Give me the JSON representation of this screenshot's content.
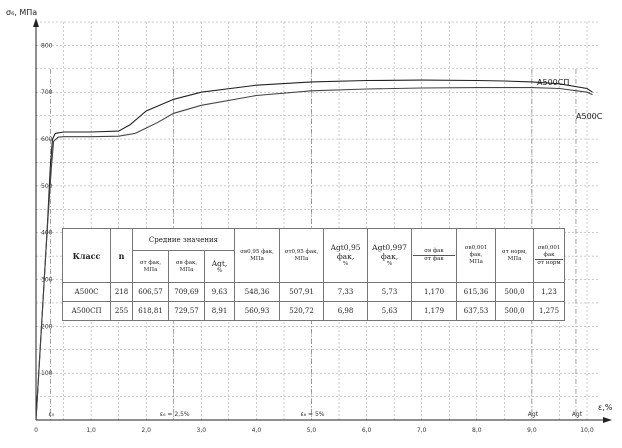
{
  "chart_data": {
    "type": "line",
    "ylabel": "σ₆, МПа",
    "xlabel": "ε,%",
    "xlim": [
      0,
      10.2
    ],
    "ylim": [
      0,
      850
    ],
    "x_ticks": [
      {
        "value": 0,
        "label": "0"
      },
      {
        "value": 1,
        "label": "1,0"
      },
      {
        "value": 2,
        "label": "2,0"
      },
      {
        "value": 3,
        "label": "3,0"
      },
      {
        "value": 4,
        "label": "4,0"
      },
      {
        "value": 5,
        "label": "5,0"
      },
      {
        "value": 6,
        "label": "6,0"
      },
      {
        "value": 7,
        "label": "7,0"
      },
      {
        "value": 8,
        "label": "8,0"
      },
      {
        "value": 9,
        "label": "9,0"
      },
      {
        "value": 10,
        "label": "10,0"
      }
    ],
    "y_ticks": [
      {
        "value": 100,
        "label": "100"
      },
      {
        "value": 200,
        "label": "200"
      },
      {
        "value": 300,
        "label": "300"
      },
      {
        "value": 400,
        "label": "400"
      },
      {
        "value": 500,
        "label": "500"
      },
      {
        "value": 600,
        "label": "600"
      },
      {
        "value": 700,
        "label": "700"
      },
      {
        "value": 800,
        "label": "800"
      }
    ],
    "grid": true,
    "series": [
      {
        "name": "А500СП",
        "color": "#222222",
        "x": [
          0,
          0.1,
          0.2,
          0.26,
          0.3,
          0.35,
          0.5,
          1.0,
          1.5,
          1.7,
          2.0,
          2.5,
          3.0,
          4.0,
          5.0,
          6.0,
          7.0,
          8.0,
          8.5,
          9.0,
          9.5,
          10.0,
          10.1
        ],
        "y": [
          0,
          200,
          400,
          540,
          600,
          612,
          615,
          615,
          617,
          630,
          660,
          685,
          700,
          715,
          722,
          725,
          726,
          725,
          724,
          722,
          718,
          708,
          700
        ]
      },
      {
        "name": "А500С",
        "color": "#444444",
        "x": [
          0,
          0.1,
          0.2,
          0.28,
          0.32,
          0.4,
          0.5,
          1.0,
          1.5,
          1.8,
          2.2,
          2.5,
          3.0,
          4.0,
          5.0,
          6.0,
          7.0,
          8.0,
          9.0,
          9.5,
          10.0,
          10.1
        ],
        "y": [
          0,
          200,
          400,
          540,
          595,
          604,
          605,
          605,
          606,
          612,
          635,
          655,
          672,
          693,
          703,
          707,
          709,
          710,
          710,
          708,
          700,
          695
        ]
      }
    ],
    "x_markers": [
      {
        "x": 0.26,
        "label": "ε₀"
      },
      {
        "x": 2.5,
        "label": "ε₆ = 2,5%"
      },
      {
        "x": 5.0,
        "label": "ε₆ = 5%"
      },
      {
        "x": 9.0,
        "label": "Agt"
      },
      {
        "x": 9.8,
        "label": "Agt"
      }
    ],
    "table": {
      "headers": {
        "class": "Класс",
        "n": "n",
        "mean_group": "Средние значения",
        "sig_t": "σт фак,",
        "sig_t_unit": "МПа",
        "sig_v": "σв фак,",
        "sig_v_unit": "МПа",
        "agt": "Agt,",
        "agt_unit": "%",
        "sig_v_095": "σв0,95 фак,",
        "sig_v_095_unit": "МПа",
        "sig_t_095": "σт0,95 фак,",
        "sig_t_095_unit": "МПа",
        "agt_095": "Agt0,95 фак,",
        "agt_095_unit": "%",
        "agt_0997": "Agt0,997 фак,",
        "agt_0997_unit": "%",
        "ratio_top": "σв фак",
        "ratio_bottom": "σт фак",
        "sig_v_001": "σв0,001 фак,",
        "sig_v_001_unit": "МПа",
        "sig_t_norm": "σт норм,",
        "sig_t_norm_unit": "МПа",
        "ratio2_top": "σв0,001 фак",
        "ratio2_bottom": "σт норм"
      },
      "rows": [
        {
          "class": "А500С",
          "n": "218",
          "sig_t": "606,57",
          "sig_v": "709,69",
          "agt": "9,63",
          "sig_v_095": "548,36",
          "sig_t_095": "507,91",
          "agt_095": "7,33",
          "agt_0997": "5,73",
          "ratio": "1,170",
          "sig_v_001": "615,36",
          "sig_t_norm": "500,0",
          "ratio2": "1,23"
        },
        {
          "class": "А500СП",
          "n": "255",
          "sig_t": "618,81",
          "sig_v": "729,57",
          "agt": "8,91",
          "sig_v_095": "560,93",
          "sig_t_095": "520,72",
          "agt_095": "6,98",
          "agt_0997": "5,63",
          "ratio": "1,179",
          "sig_v_001": "637,53",
          "sig_t_norm": "500,0",
          "ratio2": "1,275"
        }
      ]
    }
  }
}
